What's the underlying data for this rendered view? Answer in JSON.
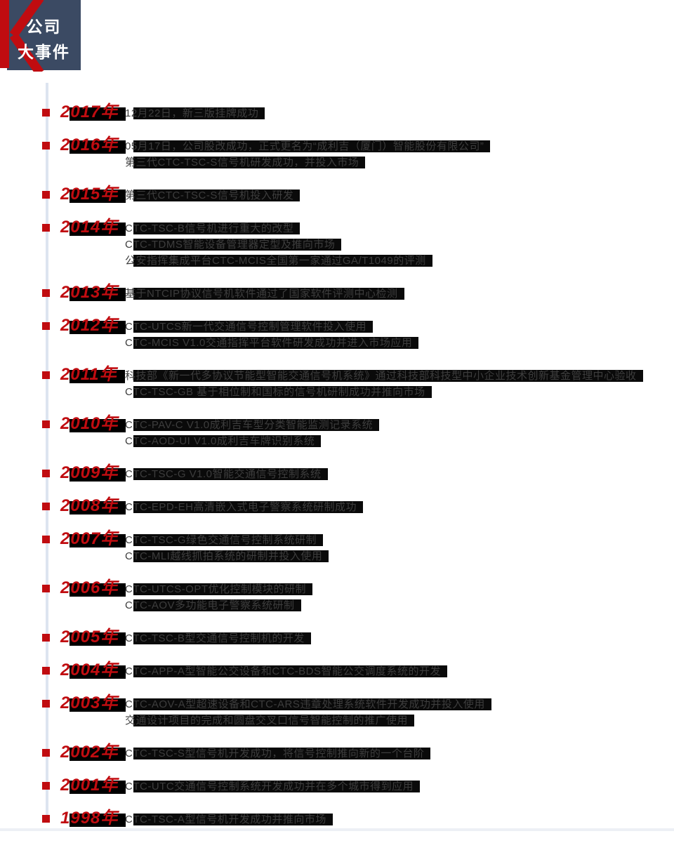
{
  "logo": {
    "text_line1": "公司",
    "text_line2": "大事件",
    "bg_color": "#3b4a63",
    "k_color": "#c00c10",
    "text_color": "#ffffff",
    "k_icon": "k-shape-icon"
  },
  "timeline": {
    "line_color": "#dde4f0",
    "marker_color": "#c00c10",
    "year_color": "#c00c10",
    "event_text_color": "#3d3d3d",
    "highlight_color": "#000000",
    "entries": [
      {
        "year": "2017年",
        "events": [
          "12月22日，新三版挂牌成功"
        ]
      },
      {
        "year": "2016年",
        "events": [
          "05月17日，公司股改成功，正式更名为“成利吉（厦门）智能股份有限公司”",
          "第三代CTC-TSC-S信号机研发成功，并投入市场"
        ]
      },
      {
        "year": "2015年",
        "events": [
          "第三代CTC-TSC-S信号机投入研发"
        ]
      },
      {
        "year": "2014年",
        "events": [
          "CTC-TSC-B信号机进行重大的改型",
          "CTC-TDMS智能设备管理器定型及推向市场",
          "公安指挥集成平台CTC-MCIS全国第一家通过GA/T1049的评测"
        ]
      },
      {
        "year": "2013年",
        "events": [
          "基于NTCIP协议信号机软件通过了国家软件评测中心检测"
        ]
      },
      {
        "year": "2012年",
        "events": [
          "CTC-UTCS新一代交通信号控制管理软件投入使用",
          "CTC-MCIS V1.0交通指挥平台软件研发成功并进入市场应用"
        ]
      },
      {
        "year": "2011年",
        "events": [
          "科技部《新一代多协议节能型智能交通信号机系统》通过科技部科技型中小企业技术创新基金管理中心验收",
          "CTC-TSC-GB 基于相位制和国标的信号机研制成功并推向市场"
        ]
      },
      {
        "year": "2010年",
        "events": [
          "CTC-PAV-C V1.0成利吉车型分类智能监测记录系统",
          "CTC-AOD-UI V1.0成利吉车牌识别系统"
        ]
      },
      {
        "year": "2009年",
        "events": [
          "CTC-TSC-G V1.0智能交通信号控制系统"
        ]
      },
      {
        "year": "2008年",
        "events": [
          "CTC-EPD-EH高清嵌入式电子警察系统研制成功"
        ]
      },
      {
        "year": "2007年",
        "events": [
          "CTC-TSC-G绿色交通信号控制系统研制",
          "CTC-MLI越线抓拍系统的研制并投入使用"
        ]
      },
      {
        "year": "2006年",
        "events": [
          "CTC-UTCS-OPT优化控制模块的研制",
          "CTC-AOV多功能电子警察系统研制"
        ]
      },
      {
        "year": "2005年",
        "events": [
          "CTC-TSC-B型交通信号控制机的开发"
        ]
      },
      {
        "year": "2004年",
        "events": [
          "CTC-APP-A型智能公交设备和CTC-BDS智能公交调度系统的开发"
        ]
      },
      {
        "year": "2003年",
        "events": [
          "CTC-AOV-A型超速设备和CTC-ARS违章处理系统软件开发成功并投入使用",
          "交通设计项目的完成和圆盘交叉口信号智能控制的推广使用"
        ]
      },
      {
        "year": "2002年",
        "events": [
          "CTC-TSC-S型信号机开发成功，将信号控制推向新的一个台阶"
        ]
      },
      {
        "year": "2001年",
        "events": [
          "CTC-UTC交通信号控制系统开发成功并在多个城市得到应用"
        ]
      },
      {
        "year": "1998年",
        "events": [
          "CTC-TSC-A型信号机开发成功并推向市场"
        ]
      }
    ]
  }
}
